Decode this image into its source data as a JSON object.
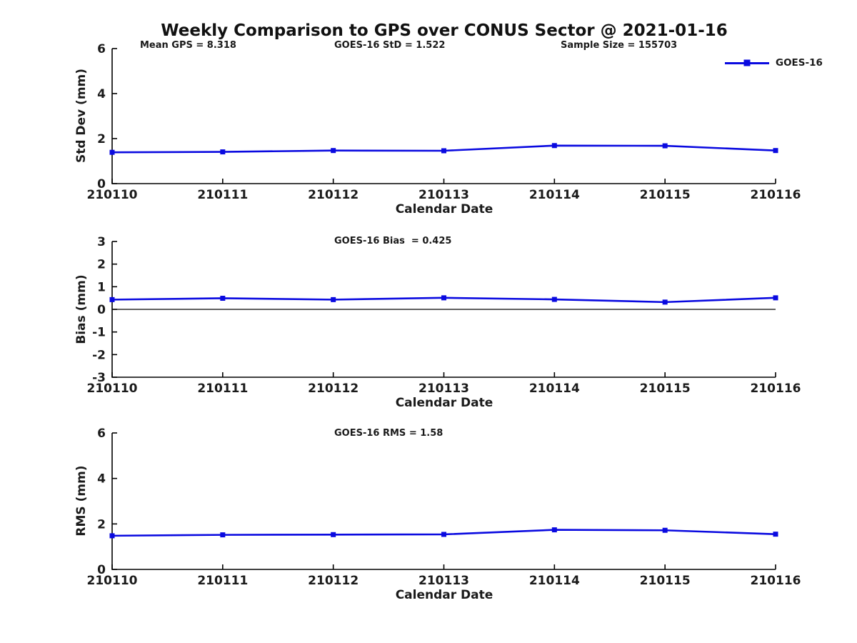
{
  "page": {
    "title": "Weekly Comparison to GPS over CONUS Sector @ 2021-01-16"
  },
  "colors": {
    "line": "#0a0ae0",
    "axis": "#000000",
    "text": "#1a1a1a",
    "background": "#ffffff"
  },
  "legend": {
    "label": "GOES-16",
    "marker": "square-icon"
  },
  "chart_data": [
    {
      "id": "std-dev",
      "type": "line",
      "annotations": [
        "Mean GPS = 8.318",
        "GOES-16 StD = 1.522",
        "Sample Size = 155703"
      ],
      "xlabel": "Calendar Date",
      "ylabel": "Std Dev (mm)",
      "categories": [
        "210110",
        "210111",
        "210112",
        "210113",
        "210114",
        "210115",
        "210116"
      ],
      "series": [
        {
          "name": "GOES-16",
          "values": [
            1.39,
            1.41,
            1.47,
            1.46,
            1.69,
            1.68,
            1.47
          ]
        }
      ],
      "ylim": [
        0,
        6
      ],
      "yticks": [
        0,
        2,
        4,
        6
      ],
      "zero_line": false,
      "grid": false,
      "legend_position": "top-right"
    },
    {
      "id": "bias",
      "type": "line",
      "annotations": [
        "GOES-16 Bias  = 0.425"
      ],
      "xlabel": "Calendar Date",
      "ylabel": "Bias (mm)",
      "categories": [
        "210110",
        "210111",
        "210112",
        "210113",
        "210114",
        "210115",
        "210116"
      ],
      "series": [
        {
          "name": "GOES-16",
          "values": [
            0.43,
            0.49,
            0.43,
            0.51,
            0.44,
            0.32,
            0.51
          ]
        }
      ],
      "ylim": [
        -3,
        3
      ],
      "yticks": [
        3,
        2,
        1,
        0,
        -1,
        -2,
        -3
      ],
      "zero_line": true,
      "grid": false,
      "legend_position": "none"
    },
    {
      "id": "rms",
      "type": "line",
      "annotations": [
        "GOES-16 RMS = 1.58"
      ],
      "xlabel": "Calendar Date",
      "ylabel": "RMS (mm)",
      "categories": [
        "210110",
        "210111",
        "210112",
        "210113",
        "210114",
        "210115",
        "210116"
      ],
      "series": [
        {
          "name": "GOES-16",
          "values": [
            1.48,
            1.52,
            1.53,
            1.54,
            1.74,
            1.72,
            1.55
          ]
        }
      ],
      "ylim": [
        0,
        6
      ],
      "yticks": [
        0,
        2,
        4,
        6
      ],
      "zero_line": false,
      "grid": false,
      "legend_position": "none"
    }
  ]
}
